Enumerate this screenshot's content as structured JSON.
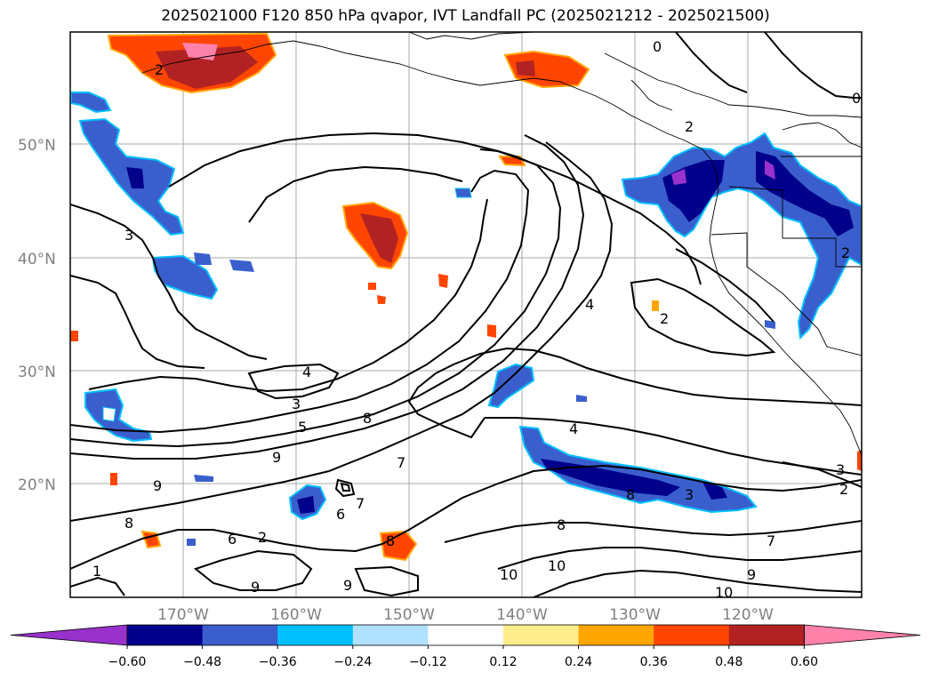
{
  "title": "2025021000 F120 850 hPa qvapor, IVT Landfall PC (2025021212 - 2025021500)",
  "latitudes": [
    "50°N",
    "40°N",
    "30°N",
    "20°N"
  ],
  "longitudes": [
    "170°W",
    "160°W",
    "150°W",
    "140°W",
    "130°W",
    "120°W"
  ],
  "colorbar": {
    "colors": [
      "#9932CC",
      "#00008B",
      "#3A5FCD",
      "#00BFFF",
      "#B0E2FF",
      "#FFFFFF",
      "#FFEC8B",
      "#FFA500",
      "#FF4500",
      "#B22222",
      "#FF82AB"
    ],
    "ticks": [
      "−0.60",
      "−0.48",
      "−0.36",
      "−0.24",
      "−0.12",
      "0.12",
      "0.24",
      "0.36",
      "0.48",
      "0.60"
    ]
  },
  "contour_labels": [
    "2",
    "2",
    "0",
    "0",
    "2",
    "3",
    "4",
    "3",
    "5",
    "8",
    "9",
    "9",
    "6",
    "7",
    "8",
    "4",
    "8",
    "7",
    "9",
    "10",
    "9",
    "10",
    "10",
    "8",
    "6",
    "2",
    "3",
    "3",
    "2",
    "7",
    "8",
    "1",
    "9",
    "4",
    "2"
  ]
}
